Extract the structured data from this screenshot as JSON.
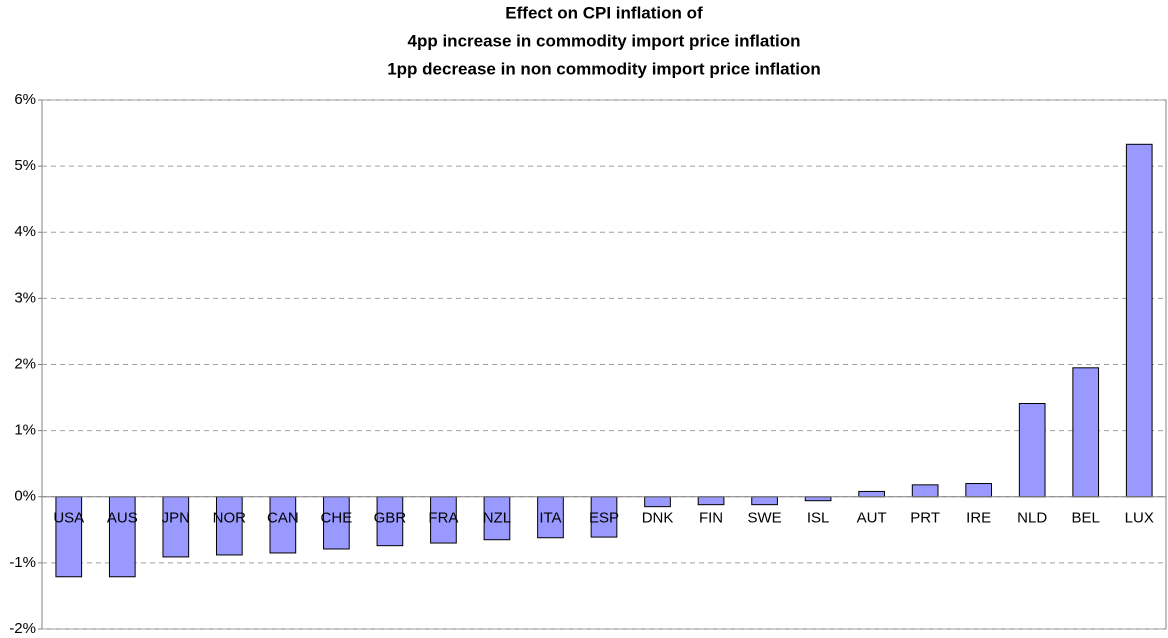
{
  "chart_data": {
    "type": "bar",
    "title": [
      "Effect on CPI inflation of",
      "4pp increase in commodity import price inflation",
      "1pp decrease in non commodity import price inflation"
    ],
    "categories": [
      "USA",
      "AUS",
      "JPN",
      "NOR",
      "CAN",
      "CHE",
      "GBR",
      "FRA",
      "NZL",
      "ITA",
      "ESP",
      "DNK",
      "FIN",
      "SWE",
      "ISL",
      "AUT",
      "PRT",
      "IRE",
      "NLD",
      "BEL",
      "LUX"
    ],
    "values": [
      -1.21,
      -1.21,
      -0.91,
      -0.88,
      -0.85,
      -0.79,
      -0.74,
      -0.7,
      -0.65,
      -0.62,
      -0.61,
      -0.15,
      -0.12,
      -0.12,
      -0.06,
      0.08,
      0.18,
      0.2,
      1.41,
      1.95,
      5.33
    ],
    "color": "#9999ff",
    "ylim": [
      -2,
      6
    ],
    "yticks": [
      {
        "value": -2,
        "label": "-2%"
      },
      {
        "value": -1,
        "label": "-1%"
      },
      {
        "value": 0,
        "label": "0%"
      },
      {
        "value": 1,
        "label": "1%"
      },
      {
        "value": 2,
        "label": "2%"
      },
      {
        "value": 3,
        "label": "3%"
      },
      {
        "value": 4,
        "label": "4%"
      },
      {
        "value": 5,
        "label": "5%"
      },
      {
        "value": 6,
        "label": "6%"
      }
    ],
    "grid": true
  }
}
